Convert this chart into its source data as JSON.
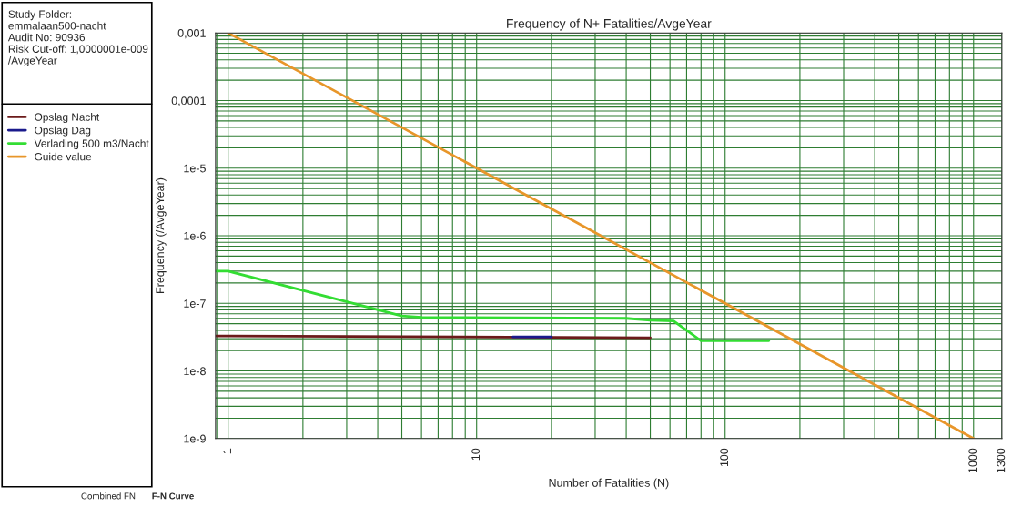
{
  "chart_data": {
    "type": "line",
    "title": "Frequency of N+ Fatalities/AvgeYear",
    "xlabel": "Number of Fatalities (N)",
    "ylabel": "Frequency (/AvgeYear)",
    "log": "xy",
    "grid": true,
    "legend": "top left",
    "line_style": "solid",
    "marker": "none",
    "xlim": [
      0.89,
      1300
    ],
    "xticks": [
      1,
      10,
      100,
      1000,
      1300
    ],
    "ylim": [
      1e-09,
      0.001
    ],
    "yticks": [
      {
        "value": 0.001,
        "label": "0,001"
      },
      {
        "value": 0.0001,
        "label": "0,0001"
      },
      {
        "value": 1e-05,
        "label": "1e-5"
      },
      {
        "value": 1e-06,
        "label": "1e-6"
      },
      {
        "value": 1e-07,
        "label": "1e-7"
      },
      {
        "value": 1e-08,
        "label": "1e-8"
      },
      {
        "value": 1e-09,
        "label": "1e-9"
      }
    ],
    "series": [
      {
        "name": "Opslag Nacht",
        "color": "#6b1a1a",
        "x": [
          0.89,
          50
        ],
        "values": [
          3.3e-08,
          3.1e-08
        ]
      },
      {
        "name": "Opslag Dag",
        "color": "#1a1a8c",
        "x": [
          14,
          20
        ],
        "values": [
          3.2e-08,
          3.2e-08
        ]
      },
      {
        "name": "Verlading 500 m3/Nacht",
        "color": "#33dd33",
        "x": [
          0.89,
          1,
          5,
          6,
          40,
          50,
          62,
          80,
          150
        ],
        "values": [
          3e-07,
          3e-07,
          6.5e-08,
          6.2e-08,
          6e-08,
          5.6e-08,
          5.5e-08,
          2.8e-08,
          2.8e-08
        ]
      },
      {
        "name": "Guide value",
        "color": "#e8962a",
        "x": [
          1,
          1000
        ],
        "values": [
          0.001,
          1e-09
        ]
      }
    ],
    "annotations": [
      "Study Folder:\nemmalaan500-nacht\nAudit No: 90936\nRisk Cut-off: 1,0000001e-009\n/AvgeYear",
      "Combined FN",
      "F-N Curve"
    ]
  }
}
